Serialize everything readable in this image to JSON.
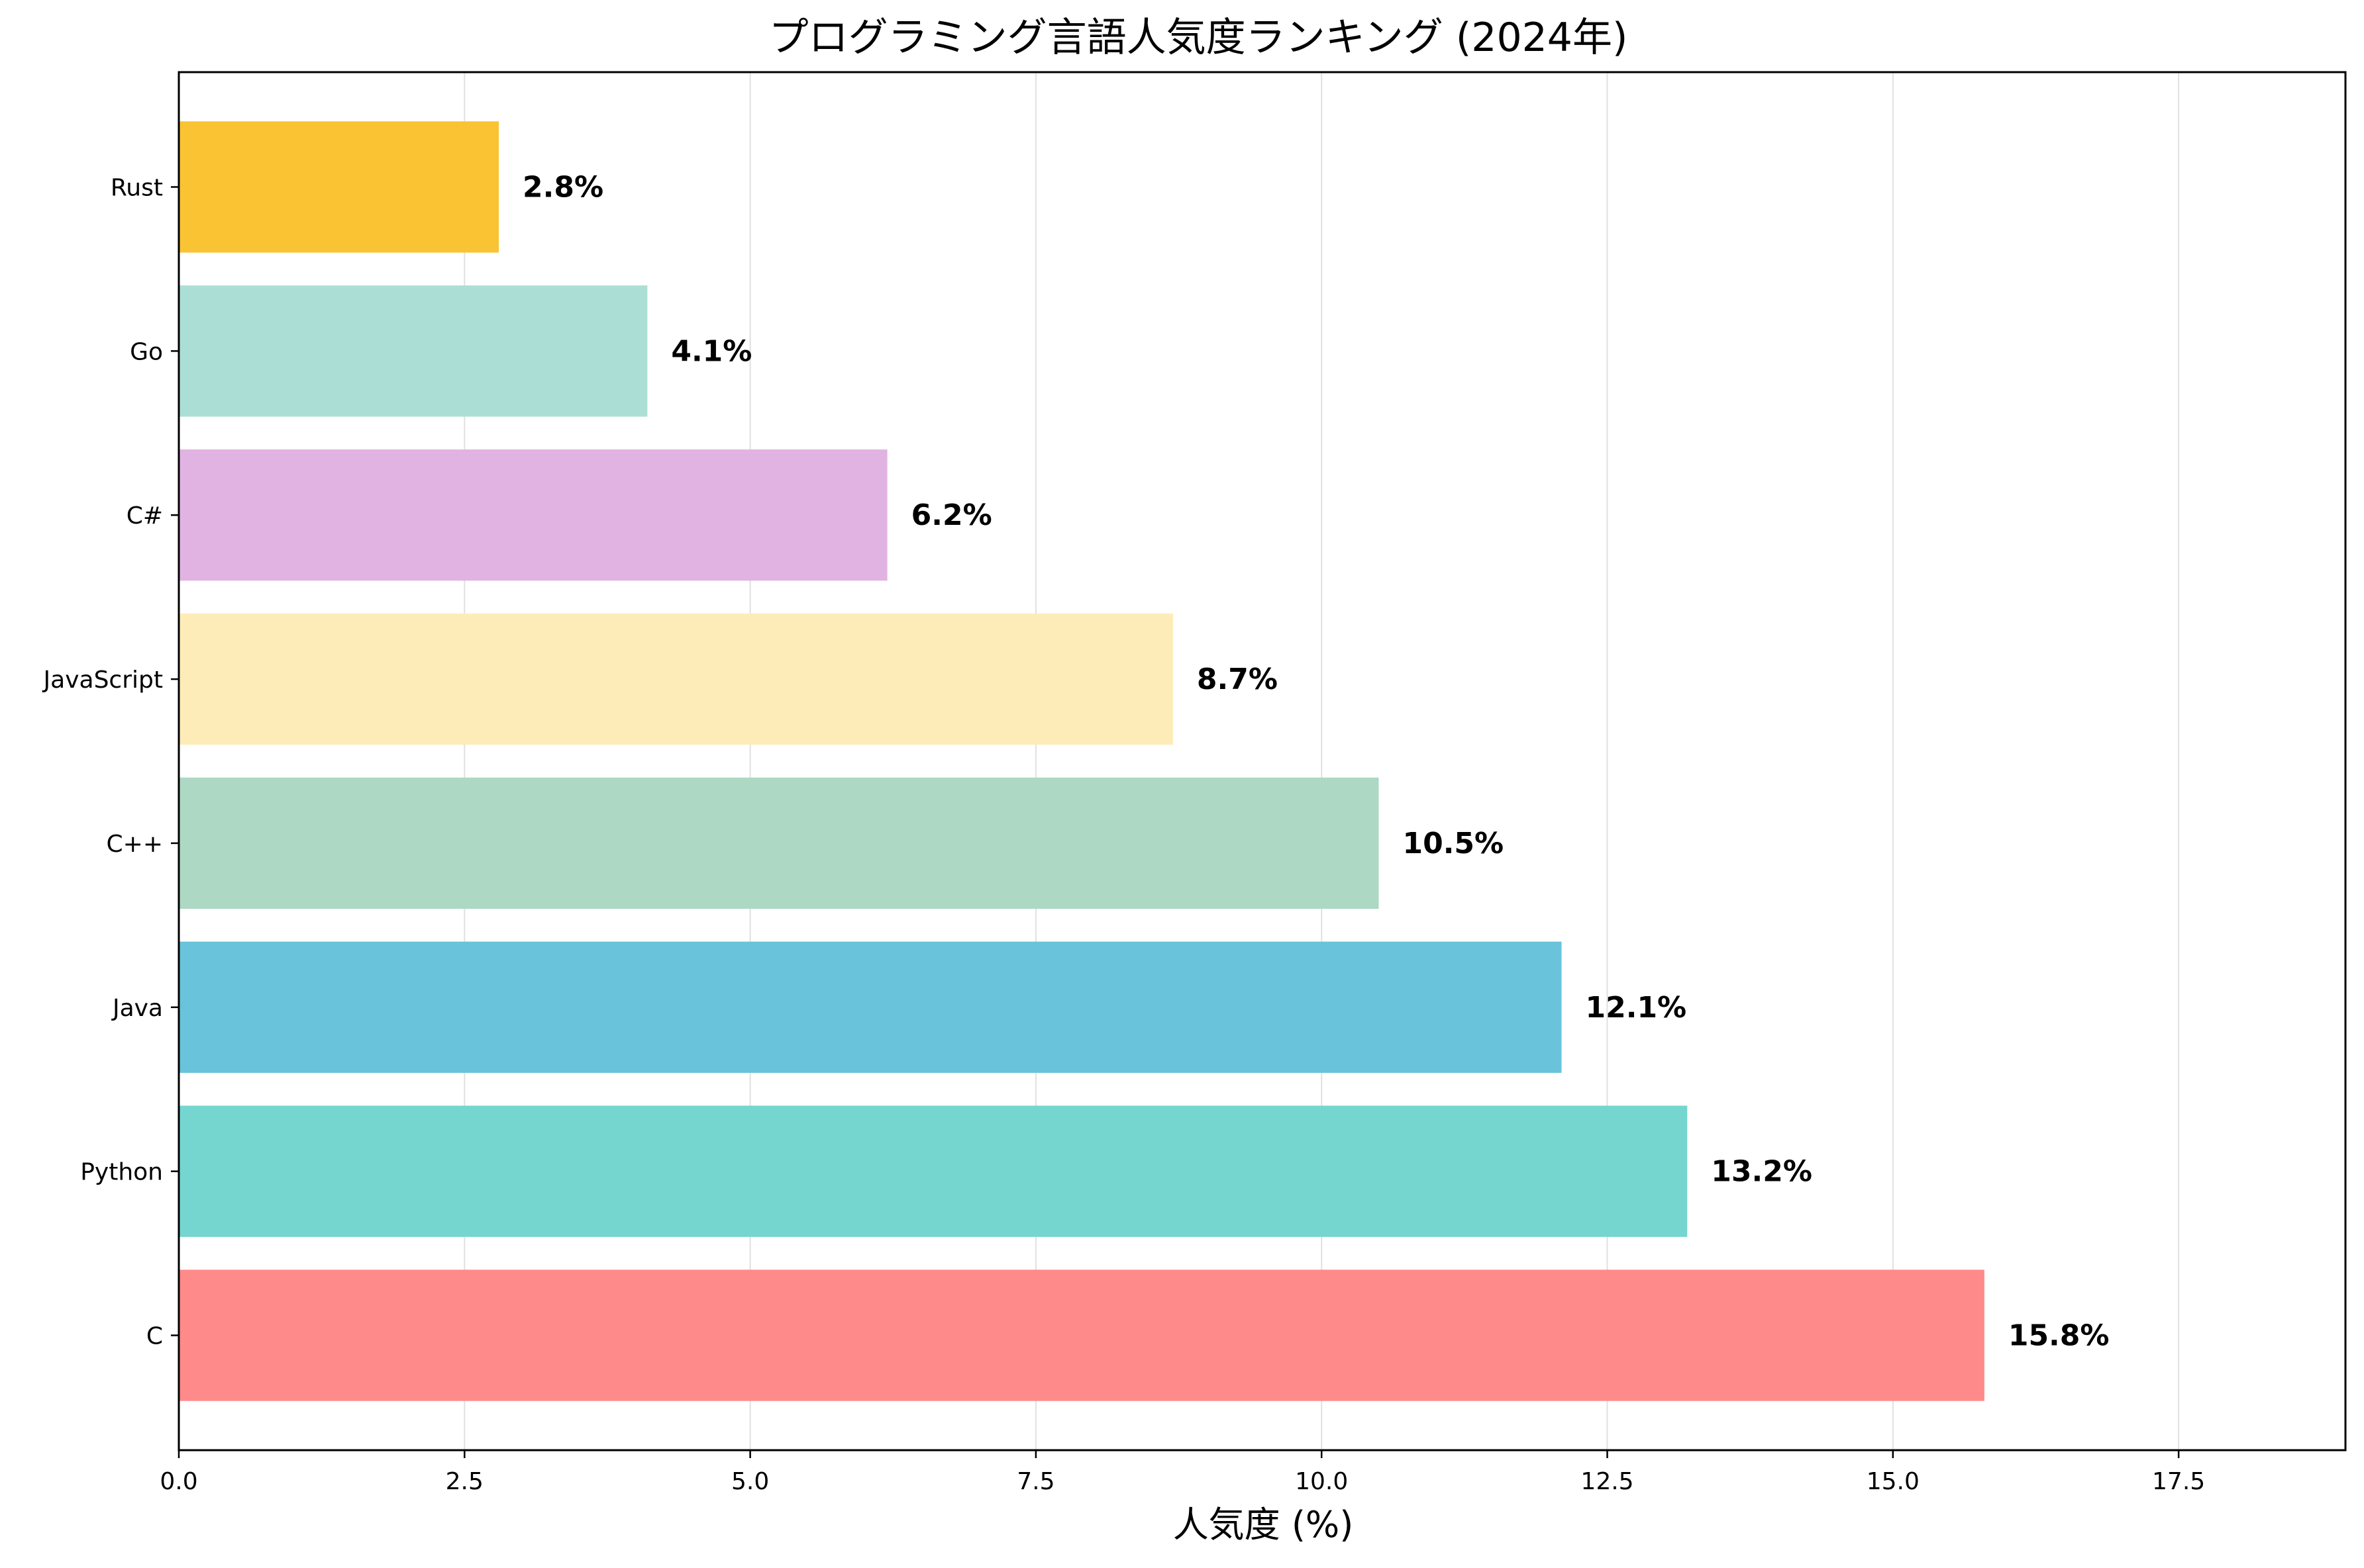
{
  "chart_data": {
    "type": "bar",
    "orientation": "horizontal",
    "title": "プログラミング言語人気度ランキング (2024年)",
    "xlabel": "人気度 (%)",
    "ylabel": "",
    "xlim": [
      0,
      18.96
    ],
    "xticks": [
      0.0,
      2.5,
      5.0,
      7.5,
      10.0,
      12.5,
      15.0,
      17.5
    ],
    "xtick_labels": [
      "0.0",
      "2.5",
      "5.0",
      "7.5",
      "10.0",
      "12.5",
      "15.0",
      "17.5"
    ],
    "grid": "vertical",
    "categories": [
      "C",
      "Python",
      "Java",
      "C++",
      "JavaScript",
      "C#",
      "Go",
      "Rust"
    ],
    "values": [
      15.8,
      13.2,
      12.1,
      10.5,
      8.7,
      6.2,
      4.1,
      2.8
    ],
    "value_labels": [
      "15.8%",
      "13.2%",
      "12.1%",
      "10.5%",
      "8.7%",
      "6.2%",
      "4.1%",
      "2.8%"
    ],
    "colors": [
      "#ff8a8a",
      "#74d6cf",
      "#69c3da",
      "#acd8c4",
      "#feecb8",
      "#e1b3e2",
      "#abdfd5",
      "#f9c333"
    ]
  }
}
